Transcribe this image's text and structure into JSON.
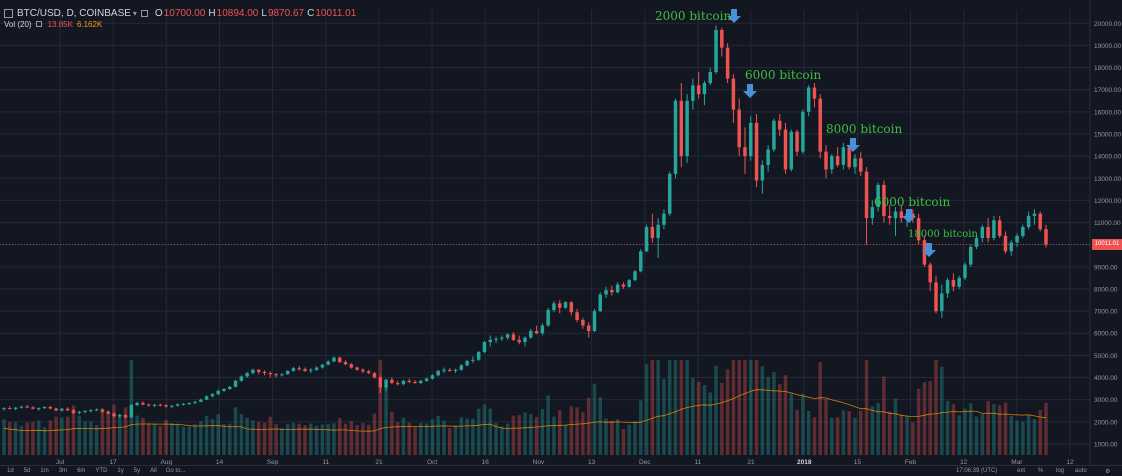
{
  "header": {
    "symbol": "BTC/USD, D, COINBASE",
    "dropdown": "▾",
    "o_label": "O",
    "o_value": "10700.00",
    "h_label": "H",
    "h_value": "10894.00",
    "l_label": "L",
    "l_value": "9870.67",
    "c_label": "C",
    "c_value": "10011.01",
    "vol_label": "Vol (20)",
    "vol_value": "13.85K",
    "vol_ma_value": "6.162K"
  },
  "price_tag": "10011.01",
  "annotations": [
    {
      "text": "2000 bitcoin"
    },
    {
      "text": "6000 bitcoin"
    },
    {
      "text": "8000 bitcoin"
    },
    {
      "text": "6000 bitcoin"
    },
    {
      "text": "18000 bitcoin"
    }
  ],
  "bottom_bar": {
    "timeframes": [
      "1d",
      "5d",
      "1m",
      "3m",
      "6m",
      "YTD",
      "1y",
      "5y",
      "All"
    ],
    "goto": "Go to...",
    "clock": "17:06:39 (UTC)",
    "ext": "ext",
    "pct": "%",
    "log": "log",
    "auto": "auto"
  },
  "colors": {
    "up": "#26a69a",
    "down": "#ef5350",
    "bg": "#131722",
    "grid": "#242838",
    "annotation": "#3fbf3f",
    "arrow": "#4a90d9",
    "vol_ma": "#ff9800"
  },
  "chart_data": {
    "type": "candlestick",
    "title": "BTC/USD, D, COINBASE",
    "y_axis": {
      "ticks": [
        1000,
        2000,
        3000,
        4000,
        5000,
        6000,
        7000,
        8000,
        9000,
        10000,
        11000,
        12000,
        13000,
        14000,
        15000,
        16000,
        17000,
        18000,
        19000,
        20000
      ],
      "range": [
        500,
        20600
      ],
      "position": "right"
    },
    "x_axis": {
      "tick_labels": [
        "Jul",
        "17",
        "Aug",
        "14",
        "Sep",
        "11",
        "21",
        "Oct",
        "16",
        "Nov",
        "13",
        "Dec",
        "11",
        "21",
        "2018",
        "15",
        "Feb",
        "12",
        "Mar",
        "12"
      ]
    },
    "candles_ohlc": [
      [
        2600,
        2660,
        2500,
        2620
      ],
      [
        2620,
        2700,
        2560,
        2580
      ],
      [
        2580,
        2660,
        2520,
        2640
      ],
      [
        2640,
        2720,
        2600,
        2690
      ],
      [
        2690,
        2760,
        2620,
        2650
      ],
      [
        2650,
        2700,
        2560,
        2590
      ],
      [
        2590,
        2650,
        2500,
        2620
      ],
      [
        2620,
        2690,
        2580,
        2670
      ],
      [
        2670,
        2720,
        2570,
        2600
      ],
      [
        2600,
        2640,
        2470,
        2510
      ],
      [
        2510,
        2620,
        2450,
        2590
      ],
      [
        2590,
        2650,
        2480,
        2520
      ],
      [
        2520,
        2580,
        2350,
        2400
      ],
      [
        2400,
        2500,
        2330,
        2450
      ],
      [
        2450,
        2520,
        2380,
        2490
      ],
      [
        2490,
        2560,
        2420,
        2530
      ],
      [
        2530,
        2600,
        2480,
        2560
      ],
      [
        2560,
        2610,
        2400,
        2460
      ],
      [
        2460,
        2520,
        2340,
        2370
      ],
      [
        2370,
        2420,
        2200,
        2250
      ],
      [
        2250,
        2350,
        2180,
        2300
      ],
      [
        2300,
        2350,
        2150,
        2200
      ],
      [
        2200,
        2800,
        2180,
        2760
      ],
      [
        2760,
        2900,
        2700,
        2850
      ],
      [
        2850,
        2920,
        2740,
        2780
      ],
      [
        2780,
        2820,
        2680,
        2740
      ],
      [
        2740,
        2800,
        2660,
        2770
      ],
      [
        2770,
        2820,
        2700,
        2750
      ],
      [
        2750,
        2800,
        2640,
        2690
      ],
      [
        2690,
        2760,
        2620,
        2730
      ],
      [
        2730,
        2830,
        2690,
        2790
      ],
      [
        2790,
        2850,
        2730,
        2810
      ],
      [
        2810,
        2880,
        2760,
        2850
      ],
      [
        2850,
        2940,
        2800,
        2900
      ],
      [
        2900,
        3050,
        2880,
        3000
      ],
      [
        3000,
        3200,
        2980,
        3150
      ],
      [
        3150,
        3300,
        3100,
        3250
      ],
      [
        3250,
        3450,
        3200,
        3400
      ],
      [
        3400,
        3520,
        3350,
        3480
      ],
      [
        3480,
        3620,
        3440,
        3580
      ],
      [
        3580,
        3900,
        3550,
        3850
      ],
      [
        3850,
        4100,
        3800,
        4050
      ],
      [
        4050,
        4250,
        3980,
        4200
      ],
      [
        4200,
        4400,
        4150,
        4350
      ],
      [
        4350,
        4380,
        4150,
        4250
      ],
      [
        4250,
        4320,
        4100,
        4200
      ],
      [
        4200,
        4280,
        4000,
        4150
      ],
      [
        4150,
        4200,
        4000,
        4100
      ],
      [
        4100,
        4200,
        4040,
        4150
      ],
      [
        4150,
        4330,
        4120,
        4300
      ],
      [
        4300,
        4480,
        4250,
        4420
      ],
      [
        4420,
        4520,
        4300,
        4380
      ],
      [
        4380,
        4450,
        4250,
        4300
      ],
      [
        4300,
        4420,
        4200,
        4350
      ],
      [
        4350,
        4500,
        4300,
        4450
      ],
      [
        4450,
        4620,
        4400,
        4580
      ],
      [
        4580,
        4780,
        4550,
        4720
      ],
      [
        4720,
        4950,
        4700,
        4900
      ],
      [
        4900,
        4950,
        4650,
        4700
      ],
      [
        4700,
        4780,
        4550,
        4600
      ],
      [
        4600,
        4650,
        4400,
        4450
      ],
      [
        4450,
        4500,
        4300,
        4350
      ],
      [
        4350,
        4420,
        4200,
        4280
      ],
      [
        4280,
        4350,
        4150,
        4200
      ],
      [
        4200,
        4250,
        3950,
        4000
      ],
      [
        4000,
        4100,
        3300,
        3550
      ],
      [
        3550,
        3950,
        3400,
        3900
      ],
      [
        3900,
        4000,
        3700,
        3750
      ],
      [
        3750,
        3850,
        3650,
        3700
      ],
      [
        3700,
        3900,
        3650,
        3850
      ],
      [
        3850,
        3950,
        3750,
        3800
      ],
      [
        3800,
        3880,
        3720,
        3750
      ],
      [
        3750,
        3900,
        3700,
        3850
      ],
      [
        3850,
        4000,
        3800,
        3950
      ],
      [
        3950,
        4150,
        3900,
        4100
      ],
      [
        4100,
        4350,
        4050,
        4300
      ],
      [
        4300,
        4450,
        4200,
        4350
      ],
      [
        4350,
        4420,
        4250,
        4300
      ],
      [
        4300,
        4400,
        4200,
        4350
      ],
      [
        4350,
        4600,
        4300,
        4550
      ],
      [
        4550,
        4800,
        4500,
        4750
      ],
      [
        4750,
        4950,
        4650,
        4800
      ],
      [
        4800,
        5200,
        4750,
        5150
      ],
      [
        5150,
        5650,
        5100,
        5600
      ],
      [
        5600,
        5900,
        5400,
        5700
      ],
      [
        5700,
        5850,
        5550,
        5750
      ],
      [
        5750,
        5900,
        5650,
        5800
      ],
      [
        5800,
        6000,
        5700,
        5950
      ],
      [
        5950,
        6050,
        5650,
        5700
      ],
      [
        5700,
        5900,
        5500,
        5600
      ],
      [
        5600,
        5850,
        5400,
        5800
      ],
      [
        5800,
        6200,
        5750,
        6100
      ],
      [
        6100,
        6350,
        5950,
        6000
      ],
      [
        6000,
        6450,
        5900,
        6350
      ],
      [
        6350,
        7150,
        6300,
        7050
      ],
      [
        7050,
        7450,
        6950,
        7350
      ],
      [
        7350,
        7500,
        6900,
        7150
      ],
      [
        7150,
        7450,
        7100,
        7400
      ],
      [
        7400,
        7450,
        6800,
        6950
      ],
      [
        6950,
        7100,
        6500,
        6600
      ],
      [
        6600,
        6700,
        6200,
        6350
      ],
      [
        6350,
        6500,
        5800,
        6100
      ],
      [
        6100,
        7100,
        6050,
        7000
      ],
      [
        7000,
        7850,
        6950,
        7750
      ],
      [
        7750,
        8100,
        7600,
        7950
      ],
      [
        7950,
        8150,
        7700,
        7850
      ],
      [
        7850,
        8300,
        7800,
        8200
      ],
      [
        8200,
        8300,
        8000,
        8100
      ],
      [
        8100,
        8450,
        8050,
        8400
      ],
      [
        8400,
        8850,
        8350,
        8800
      ],
      [
        8800,
        9800,
        8750,
        9700
      ],
      [
        9700,
        10900,
        9650,
        10800
      ],
      [
        10800,
        11400,
        10100,
        10300
      ],
      [
        10300,
        11200,
        9400,
        10900
      ],
      [
        10900,
        11600,
        10700,
        11400
      ],
      [
        11400,
        13300,
        11300,
        13200
      ],
      [
        13200,
        16600,
        13000,
        16500
      ],
      [
        16500,
        17300,
        13500,
        14000
      ],
      [
        14000,
        16800,
        13700,
        16500
      ],
      [
        16500,
        17500,
        16100,
        17200
      ],
      [
        17200,
        17800,
        16600,
        16800
      ],
      [
        16800,
        17400,
        16300,
        17300
      ],
      [
        17300,
        18000,
        17200,
        17800
      ],
      [
        17800,
        19900,
        17700,
        19700
      ],
      [
        19700,
        19800,
        18500,
        18900
      ],
      [
        18900,
        19100,
        17300,
        17500
      ],
      [
        17500,
        17700,
        15500,
        16100
      ],
      [
        16100,
        16600,
        14000,
        14400
      ],
      [
        14400,
        15300,
        13200,
        14000
      ],
      [
        14000,
        15800,
        13800,
        15500
      ],
      [
        15500,
        15900,
        12600,
        12900
      ],
      [
        12900,
        13800,
        12300,
        13600
      ],
      [
        13600,
        14500,
        13300,
        14300
      ],
      [
        14300,
        15700,
        14200,
        15600
      ],
      [
        15600,
        15900,
        14900,
        15200
      ],
      [
        15200,
        15500,
        13200,
        13400
      ],
      [
        13400,
        15200,
        13300,
        15100
      ],
      [
        15100,
        15200,
        14000,
        14200
      ],
      [
        14200,
        16100,
        14100,
        16000
      ],
      [
        16000,
        17200,
        15800,
        17100
      ],
      [
        17100,
        17300,
        16200,
        16600
      ],
      [
        16600,
        16800,
        13900,
        14200
      ],
      [
        14200,
        14500,
        13000,
        13400
      ],
      [
        13400,
        14100,
        13200,
        14000
      ],
      [
        14000,
        14400,
        13500,
        13600
      ],
      [
        13600,
        14600,
        13400,
        14400
      ],
      [
        14400,
        14500,
        13400,
        13500
      ],
      [
        13500,
        14100,
        13200,
        13900
      ],
      [
        13900,
        14200,
        13100,
        13300
      ],
      [
        13300,
        13500,
        10000,
        11200
      ],
      [
        11200,
        12000,
        10900,
        11700
      ],
      [
        11700,
        12800,
        11500,
        12700
      ],
      [
        12700,
        12900,
        11000,
        11300
      ],
      [
        11300,
        11800,
        10900,
        11200
      ],
      [
        11200,
        11700,
        10400,
        11500
      ],
      [
        11500,
        11800,
        11000,
        11200
      ],
      [
        11200,
        11600,
        10800,
        11400
      ],
      [
        11400,
        11600,
        11000,
        11200
      ],
      [
        11200,
        11400,
        10000,
        10200
      ],
      [
        10200,
        10400,
        9000,
        9100
      ],
      [
        9100,
        9200,
        7900,
        8300
      ],
      [
        8300,
        8600,
        6900,
        7000
      ],
      [
        7000,
        8200,
        6700,
        7800
      ],
      [
        7800,
        8500,
        7600,
        8400
      ],
      [
        8400,
        8700,
        7900,
        8100
      ],
      [
        8100,
        8600,
        8000,
        8500
      ],
      [
        8500,
        9200,
        8400,
        9100
      ],
      [
        9100,
        10000,
        9000,
        9900
      ],
      [
        9900,
        10500,
        9800,
        10300
      ],
      [
        10300,
        10900,
        10100,
        10800
      ],
      [
        10800,
        11200,
        10100,
        10300
      ],
      [
        10300,
        11300,
        10200,
        11100
      ],
      [
        11100,
        11300,
        10300,
        10400
      ],
      [
        10400,
        10600,
        9600,
        9700
      ],
      [
        9700,
        10200,
        9500,
        10100
      ],
      [
        10100,
        10500,
        9900,
        10400
      ],
      [
        10400,
        10900,
        10300,
        10800
      ],
      [
        10800,
        11500,
        10700,
        11300
      ],
      [
        11300,
        11600,
        10900,
        11400
      ],
      [
        11400,
        11500,
        10600,
        10700
      ],
      [
        10700,
        10894,
        9870,
        10011
      ]
    ],
    "volume_note": "volume bars in lower pane with 20-period moving average (orange)"
  }
}
